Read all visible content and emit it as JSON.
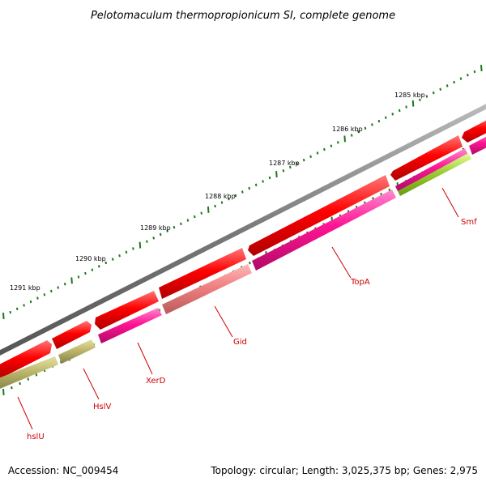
{
  "title": "Pelotomaculum thermopropionicum SI, complete genome",
  "footer": {
    "accession": "Accession: NC_009454",
    "summary": "Topology: circular; Length: 3,025,375 bp; Genes: 2,975"
  },
  "colors": {
    "backbone": "#888888",
    "cds_red": "#ff0000",
    "cds_magenta": "#ff1493",
    "cds_salmon": "#f08080",
    "cds_olive": "#bdb76b",
    "cds_lime": "#9acd32",
    "tick": "#1a7a1a",
    "label": "#cc0000"
  },
  "scale_labels": [
    "1285 kbp",
    "1286 kbp",
    "1287 kbp",
    "1288 kbp",
    "1289 kbp",
    "1290 kbp",
    "1291 kbp"
  ],
  "genes": [
    {
      "name": "Smf"
    },
    {
      "name": "TopA"
    },
    {
      "name": "Gid"
    },
    {
      "name": "XerD"
    },
    {
      "name": "HslV"
    },
    {
      "name": "hslU"
    }
  ]
}
